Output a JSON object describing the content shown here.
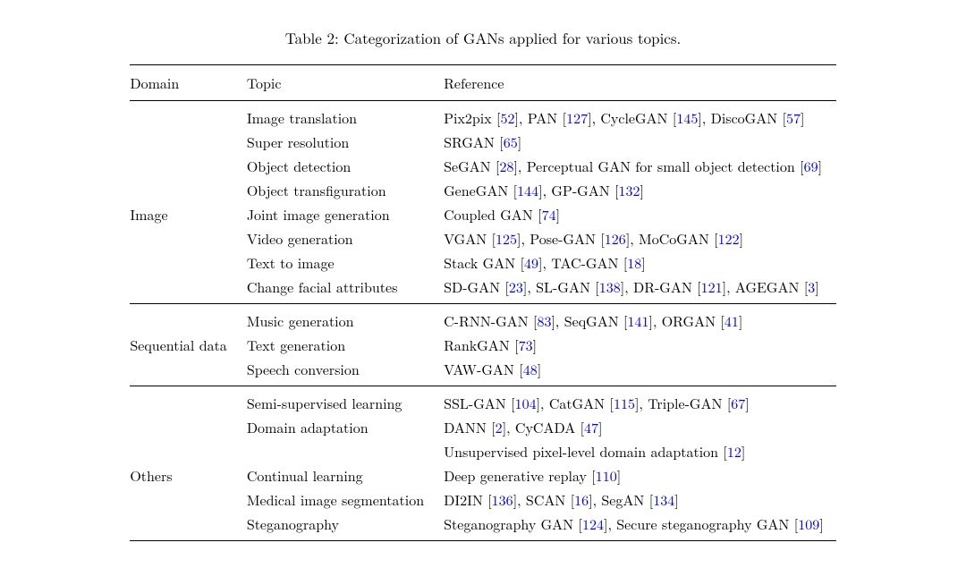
{
  "caption_prefix": "Table 2:",
  "caption_text": "Categorization of GANs applied for various topics.",
  "columns": [
    "Domain",
    "Topic",
    "Reference"
  ],
  "link_color": "#0000d6",
  "text_color": "#000000",
  "background_color": "#ffffff",
  "rule_color": "#000000",
  "font_size_body": 16,
  "font_size_caption": 17,
  "sections": [
    {
      "domain": "Image",
      "domain_row_index": 4,
      "rows": [
        {
          "topic": "Image translation",
          "refs": [
            {
              "name": "Pix2pix",
              "num": "52"
            },
            {
              "name": "PAN",
              "num": "127"
            },
            {
              "name": "CycleGAN",
              "num": "145"
            },
            {
              "name": "DiscoGAN",
              "num": "57"
            }
          ]
        },
        {
          "topic": "Super resolution",
          "refs": [
            {
              "name": "SRGAN",
              "num": "65"
            }
          ]
        },
        {
          "topic": "Object detection",
          "refs": [
            {
              "name": "SeGAN",
              "num": "28"
            },
            {
              "name": "Perceptual GAN for small object detection",
              "num": "69"
            }
          ]
        },
        {
          "topic": "Object transfiguration",
          "refs": [
            {
              "name": "GeneGAN",
              "num": "144"
            },
            {
              "name": "GP-GAN",
              "num": "132"
            }
          ]
        },
        {
          "topic": "Joint image generation",
          "refs": [
            {
              "name": "Coupled GAN",
              "num": "74"
            }
          ]
        },
        {
          "topic": "Video generation",
          "refs": [
            {
              "name": "VGAN",
              "num": "125"
            },
            {
              "name": "Pose-GAN",
              "num": "126"
            },
            {
              "name": "MoCoGAN",
              "num": "122"
            }
          ]
        },
        {
          "topic": "Text to image",
          "refs": [
            {
              "name": "Stack GAN",
              "num": "49"
            },
            {
              "name": "TAC-GAN",
              "num": "18"
            }
          ]
        },
        {
          "topic": "Change facial attributes",
          "refs": [
            {
              "name": "SD-GAN",
              "num": "23"
            },
            {
              "name": "SL-GAN",
              "num": "138"
            },
            {
              "name": "DR-GAN",
              "num": "121"
            },
            {
              "name": "AGEGAN",
              "num": "3"
            }
          ]
        }
      ]
    },
    {
      "domain": "Sequential data",
      "domain_row_index": 1,
      "rows": [
        {
          "topic": "Music generation",
          "refs": [
            {
              "name": "C-RNN-GAN",
              "num": "83"
            },
            {
              "name": "SeqGAN",
              "num": "141"
            },
            {
              "name": "ORGAN",
              "num": "41"
            }
          ]
        },
        {
          "topic": "Text generation",
          "refs": [
            {
              "name": "RankGAN",
              "num": "73"
            }
          ]
        },
        {
          "topic": "Speech conversion",
          "refs": [
            {
              "name": "VAW-GAN",
              "num": "48"
            }
          ]
        }
      ]
    },
    {
      "domain": "Others",
      "domain_row_index": 3,
      "rows": [
        {
          "topic": "Semi-supervised learning",
          "refs": [
            {
              "name": "SSL-GAN",
              "num": "104"
            },
            {
              "name": "CatGAN",
              "num": "115"
            },
            {
              "name": "Triple-GAN",
              "num": "67"
            }
          ]
        },
        {
          "topic": "Domain adaptation",
          "refs": [
            {
              "name": "DANN",
              "num": "2"
            },
            {
              "name": "CyCADA",
              "num": "47"
            }
          ]
        },
        {
          "topic": "",
          "refs": [
            {
              "name": "Unsupervised pixel-level domain adaptation",
              "num": "12"
            }
          ]
        },
        {
          "topic": "Continual learning",
          "refs": [
            {
              "name": "Deep generative replay",
              "num": "110"
            }
          ]
        },
        {
          "topic": "Medical image segmentation",
          "refs": [
            {
              "name": "DI2IN",
              "num": "136"
            },
            {
              "name": "SCAN",
              "num": "16"
            },
            {
              "name": "SegAN",
              "num": "134"
            }
          ]
        },
        {
          "topic": "Steganography",
          "refs": [
            {
              "name": "Steganography GAN",
              "num": "124"
            },
            {
              "name": "Secure steganography GAN",
              "num": "109"
            }
          ]
        }
      ]
    }
  ]
}
